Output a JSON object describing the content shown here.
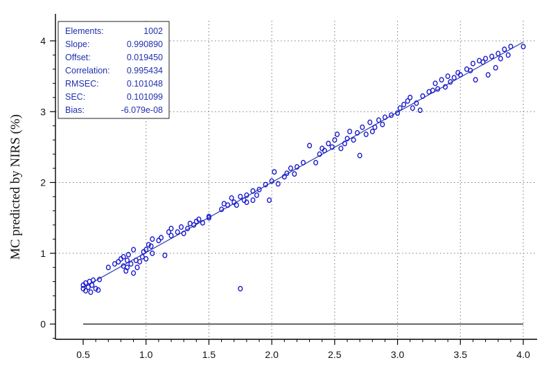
{
  "chart_data": {
    "type": "scatter",
    "title": "",
    "xlabel": "",
    "ylabel": "MC predicted by NIRS (%)",
    "xlim": [
      0.4,
      4.1
    ],
    "ylim": [
      -0.2,
      4.1
    ],
    "x_ticks": [
      "0.5",
      "1.0",
      "1.5",
      "2.0",
      "2.5",
      "3.0",
      "3.5",
      "4.0"
    ],
    "y_ticks": [
      "0",
      "1",
      "2",
      "3",
      "4"
    ],
    "grid": "dotted",
    "colors": {
      "points": "#1a1acc",
      "fit_line": "#2a3aa8",
      "zero_line": "#666666",
      "stats_text": "#1f2fae"
    },
    "stats": [
      {
        "label": "Elements:",
        "value": "1002"
      },
      {
        "label": "Slope:",
        "value": "0.990890"
      },
      {
        "label": "Offset:",
        "value": "0.019450"
      },
      {
        "label": "Correlation:",
        "value": "0.995434"
      },
      {
        "label": "RMSEC:",
        "value": "0.101048"
      },
      {
        "label": "SEC:",
        "value": "0.101099"
      },
      {
        "label": "Bias:",
        "value": "-6.079e-08"
      }
    ],
    "fit_line": {
      "slope": 0.99089,
      "offset": 0.01945,
      "x_range": [
        0.5,
        4.0
      ]
    },
    "series": [
      {
        "points": [
          [
            0.5,
            0.55
          ],
          [
            0.5,
            0.5
          ],
          [
            0.52,
            0.58
          ],
          [
            0.52,
            0.47
          ],
          [
            0.54,
            0.52
          ],
          [
            0.55,
            0.6
          ],
          [
            0.56,
            0.45
          ],
          [
            0.57,
            0.55
          ],
          [
            0.58,
            0.62
          ],
          [
            0.6,
            0.5
          ],
          [
            0.62,
            0.48
          ],
          [
            0.63,
            0.63
          ],
          [
            0.7,
            0.8
          ],
          [
            0.75,
            0.85
          ],
          [
            0.78,
            0.88
          ],
          [
            0.8,
            0.92
          ],
          [
            0.82,
            0.95
          ],
          [
            0.82,
            0.82
          ],
          [
            0.84,
            0.75
          ],
          [
            0.85,
            0.8
          ],
          [
            0.85,
            0.9
          ],
          [
            0.86,
            0.98
          ],
          [
            0.88,
            0.85
          ],
          [
            0.9,
            1.05
          ],
          [
            0.9,
            0.72
          ],
          [
            0.92,
            0.9
          ],
          [
            0.93,
            0.8
          ],
          [
            0.95,
            0.88
          ],
          [
            0.97,
            0.95
          ],
          [
            0.98,
            1.02
          ],
          [
            1.0,
            1.05
          ],
          [
            1.0,
            0.92
          ],
          [
            1.02,
            1.12
          ],
          [
            1.04,
            1.1
          ],
          [
            1.05,
            1.2
          ],
          [
            1.05,
            1.0
          ],
          [
            1.1,
            1.18
          ],
          [
            1.12,
            1.22
          ],
          [
            1.15,
            0.97
          ],
          [
            1.18,
            1.3
          ],
          [
            1.2,
            1.25
          ],
          [
            1.2,
            1.35
          ],
          [
            1.25,
            1.3
          ],
          [
            1.28,
            1.37
          ],
          [
            1.3,
            1.28
          ],
          [
            1.33,
            1.35
          ],
          [
            1.35,
            1.42
          ],
          [
            1.38,
            1.4
          ],
          [
            1.4,
            1.45
          ],
          [
            1.42,
            1.48
          ],
          [
            1.45,
            1.43
          ],
          [
            1.5,
            1.52
          ],
          [
            1.5,
            1.5
          ],
          [
            1.6,
            1.62
          ],
          [
            1.62,
            1.7
          ],
          [
            1.65,
            1.68
          ],
          [
            1.68,
            1.78
          ],
          [
            1.7,
            1.72
          ],
          [
            1.72,
            1.68
          ],
          [
            1.75,
            1.8
          ],
          [
            1.75,
            0.5
          ],
          [
            1.78,
            1.75
          ],
          [
            1.8,
            1.82
          ],
          [
            1.8,
            1.72
          ],
          [
            1.85,
            1.88
          ],
          [
            1.85,
            1.75
          ],
          [
            1.88,
            1.82
          ],
          [
            1.9,
            1.9
          ],
          [
            1.95,
            1.97
          ],
          [
            1.98,
            1.75
          ],
          [
            2.0,
            2.02
          ],
          [
            2.02,
            2.15
          ],
          [
            2.05,
            1.98
          ],
          [
            2.1,
            2.08
          ],
          [
            2.12,
            2.13
          ],
          [
            2.15,
            2.2
          ],
          [
            2.18,
            2.12
          ],
          [
            2.2,
            2.22
          ],
          [
            2.25,
            2.28
          ],
          [
            2.3,
            2.52
          ],
          [
            2.35,
            2.28
          ],
          [
            2.38,
            2.4
          ],
          [
            2.4,
            2.48
          ],
          [
            2.42,
            2.45
          ],
          [
            2.45,
            2.55
          ],
          [
            2.48,
            2.5
          ],
          [
            2.5,
            2.6
          ],
          [
            2.52,
            2.68
          ],
          [
            2.55,
            2.48
          ],
          [
            2.58,
            2.55
          ],
          [
            2.6,
            2.62
          ],
          [
            2.62,
            2.72
          ],
          [
            2.65,
            2.6
          ],
          [
            2.68,
            2.7
          ],
          [
            2.7,
            2.38
          ],
          [
            2.72,
            2.78
          ],
          [
            2.75,
            2.68
          ],
          [
            2.78,
            2.85
          ],
          [
            2.8,
            2.72
          ],
          [
            2.82,
            2.78
          ],
          [
            2.85,
            2.88
          ],
          [
            2.88,
            2.82
          ],
          [
            2.9,
            2.92
          ],
          [
            2.95,
            2.95
          ],
          [
            3.0,
            2.98
          ],
          [
            3.02,
            3.05
          ],
          [
            3.05,
            3.1
          ],
          [
            3.08,
            3.15
          ],
          [
            3.1,
            3.2
          ],
          [
            3.12,
            3.05
          ],
          [
            3.15,
            3.12
          ],
          [
            3.18,
            3.02
          ],
          [
            3.2,
            3.22
          ],
          [
            3.25,
            3.28
          ],
          [
            3.28,
            3.3
          ],
          [
            3.3,
            3.4
          ],
          [
            3.32,
            3.32
          ],
          [
            3.35,
            3.45
          ],
          [
            3.38,
            3.35
          ],
          [
            3.4,
            3.5
          ],
          [
            3.42,
            3.42
          ],
          [
            3.45,
            3.48
          ],
          [
            3.48,
            3.55
          ],
          [
            3.5,
            3.52
          ],
          [
            3.55,
            3.6
          ],
          [
            3.58,
            3.58
          ],
          [
            3.6,
            3.68
          ],
          [
            3.62,
            3.45
          ],
          [
            3.65,
            3.72
          ],
          [
            3.68,
            3.7
          ],
          [
            3.7,
            3.75
          ],
          [
            3.72,
            3.52
          ],
          [
            3.75,
            3.78
          ],
          [
            3.78,
            3.62
          ],
          [
            3.8,
            3.82
          ],
          [
            3.82,
            3.75
          ],
          [
            3.85,
            3.88
          ],
          [
            3.88,
            3.8
          ],
          [
            3.9,
            3.92
          ],
          [
            4.0,
            3.92
          ]
        ]
      }
    ]
  }
}
